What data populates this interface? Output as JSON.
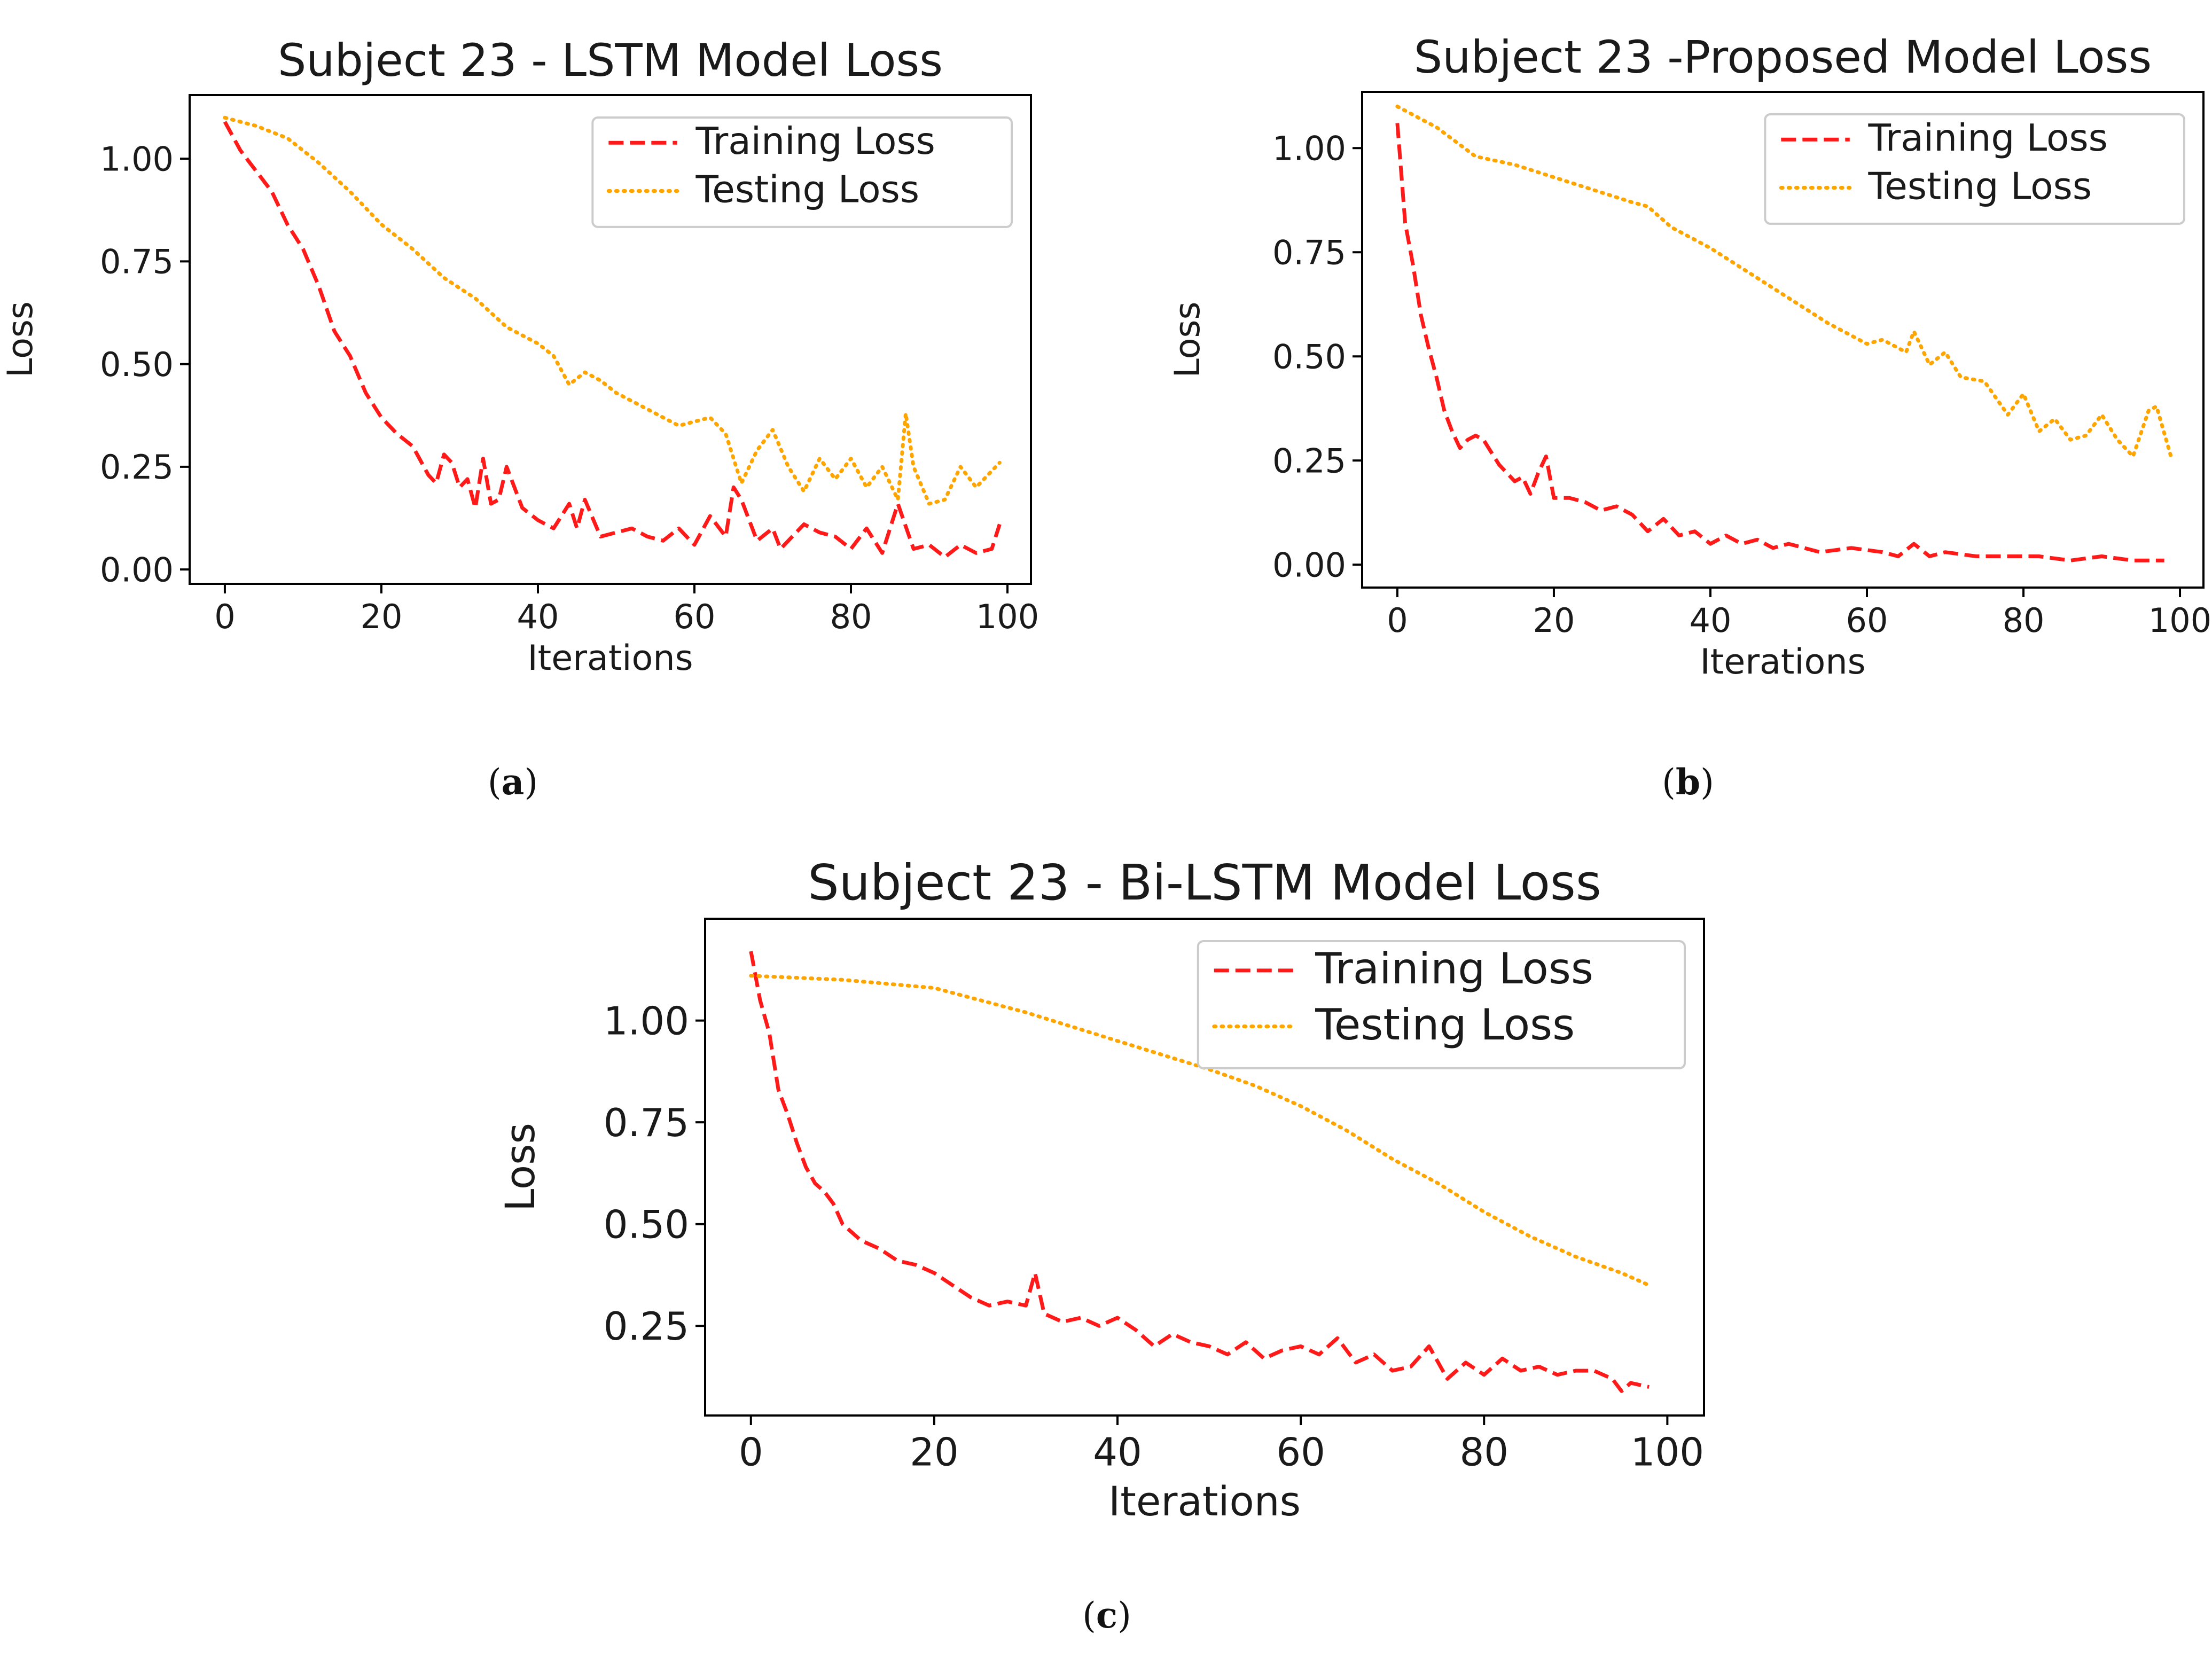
{
  "colors": {
    "training": "#ff1a1a",
    "testing": "#ffa500",
    "axis": "#000000",
    "background": "#ffffff"
  },
  "panels": [
    {
      "label_open": "(",
      "label_letter": "a",
      "label_close": ")"
    },
    {
      "label_open": "(",
      "label_letter": "b",
      "label_close": ")"
    },
    {
      "label_open": "(",
      "label_letter": "c",
      "label_close": ")"
    }
  ],
  "chart_data": [
    {
      "type": "line",
      "title": "Subject 23 - LSTM Model Loss",
      "xlabel": "Iterations",
      "ylabel": "Loss",
      "xlim": [
        -4.5,
        103
      ],
      "ylim": [
        -0.035,
        1.155
      ],
      "xticks": [
        0,
        20,
        40,
        60,
        80,
        100
      ],
      "xtick_labels": [
        "0",
        "20",
        "40",
        "60",
        "80",
        "100"
      ],
      "yticks": [
        0.0,
        0.25,
        0.5,
        0.75,
        1.0
      ],
      "ytick_labels": [
        "0.00",
        "0.25",
        "0.50",
        "0.75",
        "1.00"
      ],
      "legend": "top-right",
      "series": [
        {
          "name": "Training Loss",
          "style": "dashed",
          "color": "#ff1a1a",
          "x": [
            0,
            2,
            4,
            6,
            8,
            10,
            12,
            14,
            16,
            18,
            20,
            22,
            24,
            26,
            27,
            28,
            29,
            30,
            31,
            32,
            33,
            34,
            35,
            36,
            38,
            40,
            42,
            44,
            45,
            46,
            48,
            50,
            52,
            54,
            56,
            58,
            60,
            62,
            64,
            65,
            66,
            68,
            70,
            71,
            72,
            74,
            76,
            78,
            80,
            82,
            84,
            86,
            88,
            90,
            92,
            94,
            96,
            98,
            99
          ],
          "y": [
            1.09,
            1.02,
            0.97,
            0.92,
            0.84,
            0.78,
            0.69,
            0.58,
            0.52,
            0.43,
            0.37,
            0.33,
            0.3,
            0.23,
            0.21,
            0.28,
            0.26,
            0.2,
            0.22,
            0.15,
            0.27,
            0.16,
            0.17,
            0.25,
            0.15,
            0.12,
            0.1,
            0.16,
            0.1,
            0.17,
            0.08,
            0.09,
            0.1,
            0.08,
            0.07,
            0.1,
            0.06,
            0.13,
            0.08,
            0.2,
            0.17,
            0.07,
            0.1,
            0.05,
            0.07,
            0.11,
            0.09,
            0.08,
            0.05,
            0.1,
            0.04,
            0.16,
            0.05,
            0.06,
            0.03,
            0.06,
            0.04,
            0.05,
            0.11
          ]
        },
        {
          "name": "Testing Loss",
          "style": "dotted",
          "color": "#ffa500",
          "x": [
            0,
            4,
            8,
            12,
            16,
            20,
            24,
            28,
            32,
            36,
            40,
            42,
            44,
            46,
            48,
            50,
            54,
            58,
            62,
            64,
            66,
            68,
            70,
            72,
            74,
            76,
            78,
            80,
            82,
            84,
            86,
            87,
            88,
            90,
            92,
            94,
            96,
            98,
            99
          ],
          "y": [
            1.1,
            1.08,
            1.05,
            0.99,
            0.92,
            0.84,
            0.78,
            0.71,
            0.66,
            0.59,
            0.55,
            0.52,
            0.45,
            0.48,
            0.46,
            0.43,
            0.39,
            0.35,
            0.37,
            0.33,
            0.21,
            0.29,
            0.34,
            0.25,
            0.19,
            0.27,
            0.22,
            0.27,
            0.2,
            0.25,
            0.17,
            0.38,
            0.25,
            0.16,
            0.17,
            0.25,
            0.2,
            0.24,
            0.26
          ]
        }
      ]
    },
    {
      "type": "line",
      "title": "Subject 23 -Proposed Model Loss",
      "xlabel": "Iterations",
      "ylabel": "Loss",
      "xlim": [
        -4.5,
        103
      ],
      "ylim": [
        -0.055,
        1.135
      ],
      "xticks": [
        0,
        20,
        40,
        60,
        80,
        100
      ],
      "xtick_labels": [
        "0",
        "20",
        "40",
        "60",
        "80",
        "100"
      ],
      "yticks": [
        0.0,
        0.25,
        0.5,
        0.75,
        1.0
      ],
      "ytick_labels": [
        "0.00",
        "0.25",
        "0.50",
        "0.75",
        "1.00"
      ],
      "legend": "top-right",
      "series": [
        {
          "name": "Training Loss",
          "style": "dashed",
          "color": "#ff1a1a",
          "x": [
            0,
            1,
            2,
            3,
            4,
            5,
            6,
            7,
            8,
            9,
            10,
            11,
            12,
            13,
            14,
            15,
            16,
            17,
            18,
            19,
            20,
            22,
            24,
            26,
            28,
            30,
            32,
            34,
            36,
            38,
            40,
            42,
            44,
            46,
            48,
            50,
            54,
            58,
            62,
            64,
            66,
            68,
            70,
            74,
            78,
            82,
            86,
            90,
            94,
            98
          ],
          "y": [
            1.06,
            0.82,
            0.72,
            0.6,
            0.52,
            0.45,
            0.37,
            0.32,
            0.28,
            0.3,
            0.31,
            0.3,
            0.27,
            0.24,
            0.22,
            0.2,
            0.21,
            0.17,
            0.22,
            0.26,
            0.16,
            0.16,
            0.15,
            0.13,
            0.14,
            0.12,
            0.08,
            0.11,
            0.07,
            0.08,
            0.05,
            0.07,
            0.05,
            0.06,
            0.04,
            0.05,
            0.03,
            0.04,
            0.03,
            0.02,
            0.05,
            0.02,
            0.03,
            0.02,
            0.02,
            0.02,
            0.01,
            0.02,
            0.01,
            0.01
          ]
        },
        {
          "name": "Testing Loss",
          "style": "dotted",
          "color": "#ffa500",
          "x": [
            0,
            5,
            10,
            15,
            20,
            25,
            30,
            32,
            35,
            40,
            45,
            50,
            55,
            60,
            62,
            65,
            66,
            68,
            70,
            72,
            75,
            78,
            80,
            82,
            84,
            86,
            88,
            90,
            92,
            94,
            96,
            97,
            99
          ],
          "y": [
            1.1,
            1.05,
            0.98,
            0.96,
            0.93,
            0.9,
            0.87,
            0.86,
            0.81,
            0.76,
            0.7,
            0.64,
            0.58,
            0.53,
            0.54,
            0.51,
            0.56,
            0.48,
            0.51,
            0.45,
            0.44,
            0.36,
            0.41,
            0.32,
            0.35,
            0.3,
            0.31,
            0.36,
            0.3,
            0.26,
            0.37,
            0.38,
            0.25
          ]
        }
      ]
    },
    {
      "type": "line",
      "title": "Subject 23 - Bi-LSTM Model Loss",
      "xlabel": "Iterations",
      "ylabel": "Loss",
      "xlim": [
        -5,
        104
      ],
      "ylim": [
        0.03,
        1.25
      ],
      "xticks": [
        0,
        20,
        40,
        60,
        80,
        100
      ],
      "xtick_labels": [
        "0",
        "20",
        "40",
        "60",
        "80",
        "100"
      ],
      "yticks": [
        0.25,
        0.5,
        0.75,
        1.0
      ],
      "ytick_labels": [
        "0.25",
        "0.50",
        "0.75",
        "1.00"
      ],
      "legend": "top-right",
      "series": [
        {
          "name": "Training Loss",
          "style": "dashed",
          "color": "#ff1a1a",
          "x": [
            0,
            1,
            2,
            3,
            4,
            5,
            6,
            7,
            8,
            9,
            10,
            12,
            14,
            16,
            18,
            20,
            22,
            24,
            26,
            28,
            30,
            31,
            32,
            34,
            36,
            38,
            40,
            42,
            44,
            46,
            48,
            50,
            52,
            54,
            56,
            58,
            60,
            62,
            64,
            66,
            68,
            70,
            72,
            74,
            76,
            78,
            80,
            82,
            84,
            86,
            88,
            90,
            92,
            94,
            95,
            96,
            98
          ],
          "y": [
            1.17,
            1.05,
            0.97,
            0.83,
            0.77,
            0.7,
            0.64,
            0.6,
            0.58,
            0.55,
            0.5,
            0.46,
            0.44,
            0.41,
            0.4,
            0.38,
            0.35,
            0.32,
            0.3,
            0.31,
            0.3,
            0.38,
            0.28,
            0.26,
            0.27,
            0.25,
            0.27,
            0.24,
            0.2,
            0.23,
            0.21,
            0.2,
            0.18,
            0.21,
            0.17,
            0.19,
            0.2,
            0.18,
            0.22,
            0.16,
            0.18,
            0.14,
            0.15,
            0.2,
            0.12,
            0.16,
            0.13,
            0.17,
            0.14,
            0.15,
            0.13,
            0.14,
            0.14,
            0.12,
            0.09,
            0.11,
            0.1
          ]
        },
        {
          "name": "Testing Loss",
          "style": "dotted",
          "color": "#ffa500",
          "x": [
            0,
            10,
            20,
            30,
            40,
            50,
            55,
            60,
            65,
            70,
            75,
            80,
            85,
            90,
            95,
            98
          ],
          "y": [
            1.11,
            1.1,
            1.08,
            1.02,
            0.95,
            0.88,
            0.84,
            0.79,
            0.73,
            0.66,
            0.6,
            0.53,
            0.47,
            0.42,
            0.38,
            0.35
          ]
        }
      ]
    }
  ]
}
